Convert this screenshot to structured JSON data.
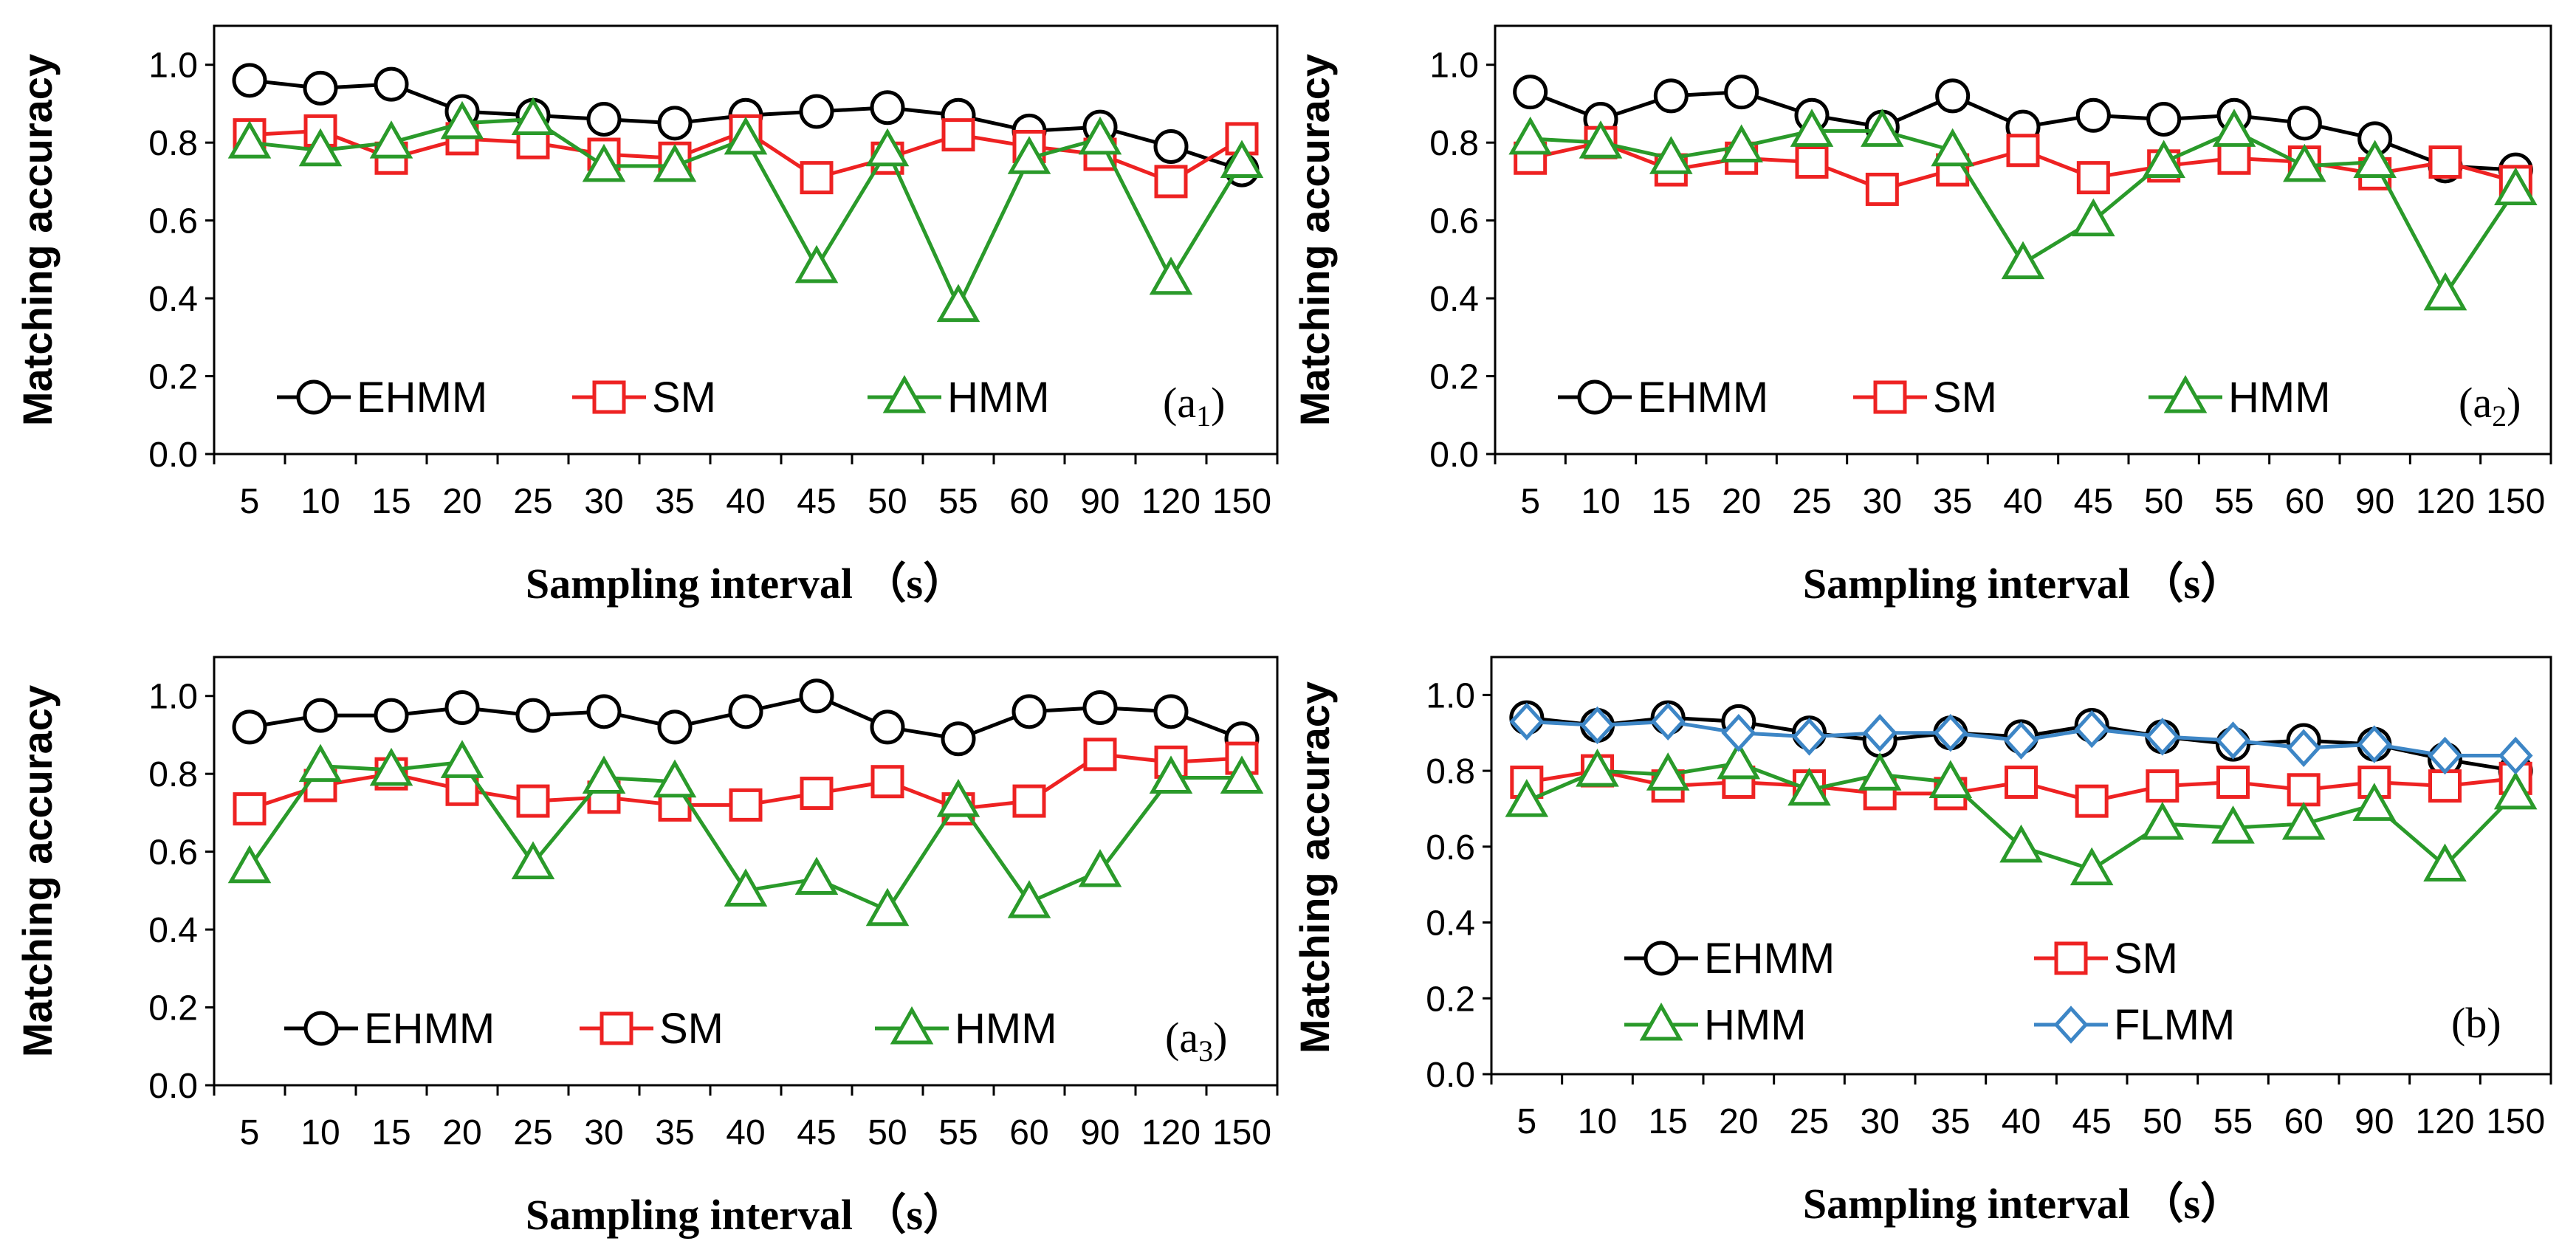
{
  "colors": {
    "EHMM": "#000000",
    "SM": "#ee2222",
    "HMM": "#2a9a2a",
    "FLMM": "#3d86c6",
    "axis": "#000000"
  },
  "chart_data": [
    {
      "type": "line",
      "panel": "a1",
      "tag": "(a",
      "tag_sub": "1",
      "tag_close": ")",
      "categories": [
        "5",
        "10",
        "15",
        "20",
        "25",
        "30",
        "35",
        "40",
        "45",
        "50",
        "55",
        "60",
        "90",
        "120",
        "150"
      ],
      "xlabel": "Sampling interval （s）",
      "ylabel": "Matching accuracy",
      "ylim": [
        0,
        1.1
      ],
      "yticks": [
        "0.0",
        "0.2",
        "0.4",
        "0.6",
        "0.8",
        "1.0"
      ],
      "legend": "bottom-left",
      "series": [
        {
          "name": "EHMM",
          "marker": "circle",
          "values": [
            0.96,
            0.94,
            0.95,
            0.88,
            0.87,
            0.86,
            0.85,
            0.87,
            0.88,
            0.89,
            0.87,
            0.83,
            0.84,
            0.79,
            0.73
          ]
        },
        {
          "name": "SM",
          "marker": "square",
          "values": [
            0.82,
            0.83,
            0.76,
            0.81,
            0.8,
            0.77,
            0.76,
            0.83,
            0.71,
            0.76,
            0.82,
            0.79,
            0.77,
            0.7,
            0.81
          ]
        },
        {
          "name": "HMM",
          "marker": "triangle",
          "values": [
            0.8,
            0.78,
            0.8,
            0.85,
            0.86,
            0.74,
            0.74,
            0.81,
            0.48,
            0.78,
            0.38,
            0.76,
            0.81,
            0.45,
            0.75
          ]
        }
      ]
    },
    {
      "type": "line",
      "panel": "a2",
      "tag": "(a",
      "tag_sub": "2",
      "tag_close": ")",
      "categories": [
        "5",
        "10",
        "15",
        "20",
        "25",
        "30",
        "35",
        "40",
        "45",
        "50",
        "55",
        "60",
        "90",
        "120",
        "150"
      ],
      "xlabel": "Sampling interval （s）",
      "ylabel": "Matching accuracy",
      "ylim": [
        0,
        1.1
      ],
      "yticks": [
        "0.0",
        "0.2",
        "0.4",
        "0.6",
        "0.8",
        "1.0"
      ],
      "legend": "bottom-left",
      "series": [
        {
          "name": "EHMM",
          "marker": "circle",
          "values": [
            0.93,
            0.86,
            0.92,
            0.93,
            0.87,
            0.84,
            0.92,
            0.84,
            0.87,
            0.86,
            0.87,
            0.85,
            0.81,
            0.74,
            0.73
          ]
        },
        {
          "name": "SM",
          "marker": "square",
          "values": [
            0.76,
            0.8,
            0.73,
            0.76,
            0.75,
            0.68,
            0.73,
            0.78,
            0.71,
            0.74,
            0.76,
            0.75,
            0.72,
            0.75,
            0.7
          ]
        },
        {
          "name": "HMM",
          "marker": "triangle",
          "values": [
            0.81,
            0.8,
            0.76,
            0.79,
            0.83,
            0.83,
            0.78,
            0.49,
            0.6,
            0.75,
            0.83,
            0.74,
            0.75,
            0.41,
            0.68
          ]
        }
      ]
    },
    {
      "type": "line",
      "panel": "a3",
      "tag": "(a",
      "tag_sub": "3",
      "tag_close": ")",
      "categories": [
        "5",
        "10",
        "15",
        "20",
        "25",
        "30",
        "35",
        "40",
        "45",
        "50",
        "55",
        "60",
        "90",
        "120",
        "150"
      ],
      "xlabel": "Sampling interval （s）",
      "ylabel": "Matching accuracy",
      "ylim": [
        0,
        1.1
      ],
      "yticks": [
        "0.0",
        "0.2",
        "0.4",
        "0.6",
        "0.8",
        "1.0"
      ],
      "legend": "bottom-left",
      "series": [
        {
          "name": "EHMM",
          "marker": "circle",
          "values": [
            0.92,
            0.95,
            0.95,
            0.97,
            0.95,
            0.96,
            0.92,
            0.96,
            1.0,
            0.92,
            0.89,
            0.96,
            0.97,
            0.96,
            0.89
          ]
        },
        {
          "name": "SM",
          "marker": "square",
          "values": [
            0.71,
            0.77,
            0.8,
            0.76,
            0.73,
            0.74,
            0.72,
            0.72,
            0.75,
            0.78,
            0.71,
            0.73,
            0.85,
            0.83,
            0.84
          ]
        },
        {
          "name": "HMM",
          "marker": "triangle",
          "values": [
            0.56,
            0.82,
            0.81,
            0.83,
            0.57,
            0.79,
            0.78,
            0.5,
            0.53,
            0.45,
            0.73,
            0.47,
            0.55,
            0.79,
            0.79
          ]
        }
      ]
    },
    {
      "type": "line",
      "panel": "b",
      "tag": "(b",
      "tag_sub": "",
      "tag_close": ")",
      "categories": [
        "5",
        "10",
        "15",
        "20",
        "25",
        "30",
        "35",
        "40",
        "45",
        "50",
        "55",
        "60",
        "90",
        "120",
        "150"
      ],
      "xlabel": "Sampling interval （s）",
      "ylabel": "Matching accuracy",
      "ylim": [
        0,
        1.1
      ],
      "yticks": [
        "0.0",
        "0.2",
        "0.4",
        "0.6",
        "0.8",
        "1.0"
      ],
      "legend": "bottom-left",
      "series": [
        {
          "name": "EHMM",
          "marker": "circle",
          "values": [
            0.94,
            0.92,
            0.94,
            0.93,
            0.9,
            0.88,
            0.9,
            0.89,
            0.92,
            0.89,
            0.87,
            0.88,
            0.87,
            0.83,
            0.8
          ]
        },
        {
          "name": "SM",
          "marker": "square",
          "values": [
            0.77,
            0.8,
            0.76,
            0.77,
            0.76,
            0.74,
            0.74,
            0.77,
            0.72,
            0.76,
            0.77,
            0.75,
            0.77,
            0.76,
            0.78
          ]
        },
        {
          "name": "HMM",
          "marker": "triangle",
          "values": [
            0.72,
            0.8,
            0.79,
            0.82,
            0.75,
            0.79,
            0.77,
            0.6,
            0.54,
            0.66,
            0.65,
            0.66,
            0.71,
            0.55,
            0.74
          ]
        },
        {
          "name": "FLMM",
          "marker": "diamond",
          "values": [
            0.93,
            0.92,
            0.93,
            0.9,
            0.89,
            0.9,
            0.9,
            0.88,
            0.91,
            0.89,
            0.88,
            0.86,
            0.87,
            0.84,
            0.84
          ]
        }
      ]
    }
  ]
}
